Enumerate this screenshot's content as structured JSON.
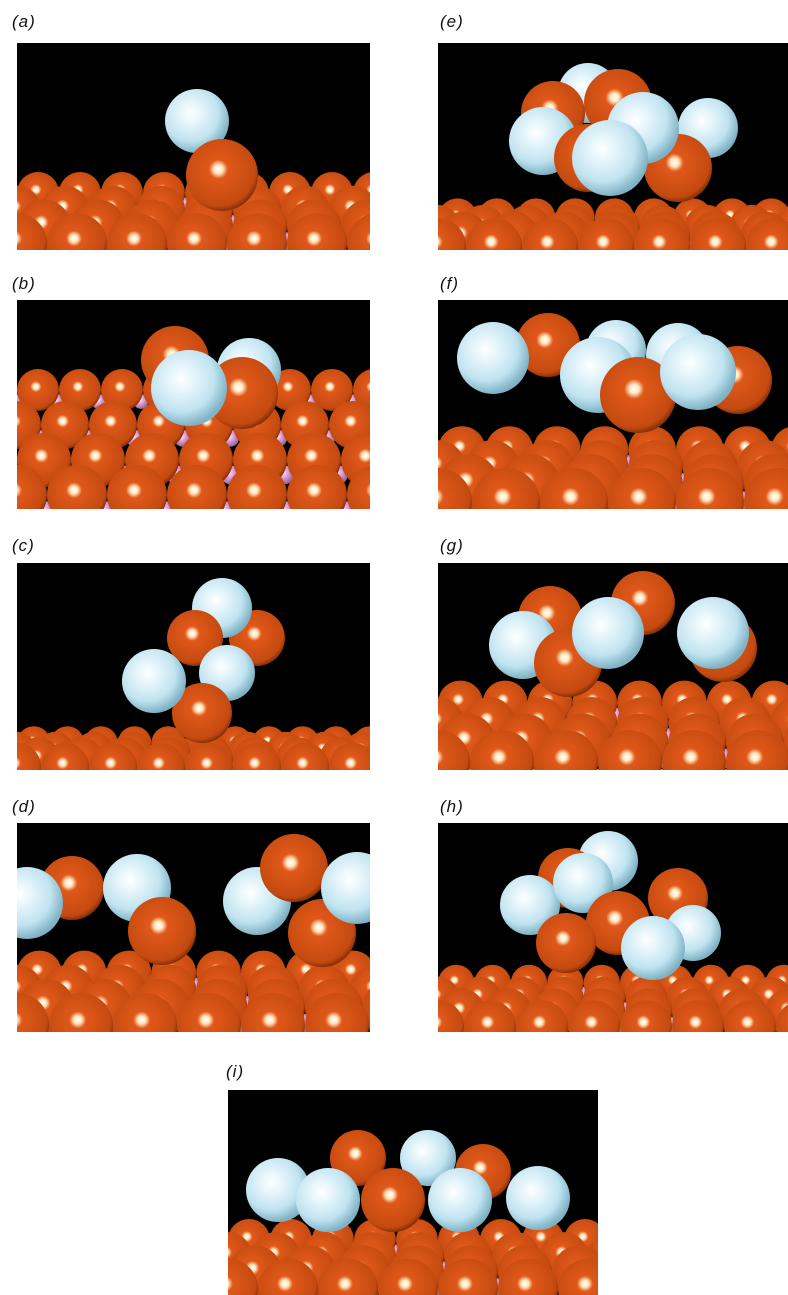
{
  "figure": {
    "panels": [
      {
        "id": "a",
        "label": "(a)"
      },
      {
        "id": "b",
        "label": "(b)"
      },
      {
        "id": "c",
        "label": "(c)"
      },
      {
        "id": "d",
        "label": "(d)"
      },
      {
        "id": "e",
        "label": "(e)"
      },
      {
        "id": "f",
        "label": "(f)"
      },
      {
        "id": "g",
        "label": "(g)"
      },
      {
        "id": "h",
        "label": "(h)"
      },
      {
        "id": "i",
        "label": "(i)"
      }
    ]
  },
  "colors": {
    "background": "#000000",
    "metal_atom": "#e0581a",
    "adsorbate_atom": "#bfe3f0",
    "subsurface_atom": "#e6a8e6"
  }
}
